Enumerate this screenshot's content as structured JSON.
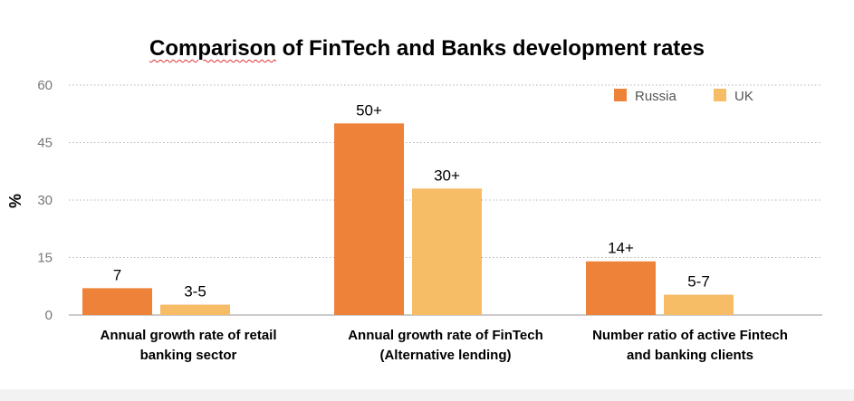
{
  "chart_data": {
    "type": "bar",
    "title_first": "Comparison",
    "title_rest": "of FinTech and Banks development rates",
    "ylabel": "%",
    "ylim": [
      0,
      60
    ],
    "yticks": [
      0,
      15,
      30,
      45,
      60
    ],
    "grid": true,
    "legend_position": "top-right",
    "categories": [
      [
        "Annual growth rate of retail",
        "banking sector"
      ],
      [
        "Annual growth rate of FinTech",
        "(Alternative lending)"
      ],
      [
        "Number ratio of active Fintech",
        "and banking clients"
      ]
    ],
    "series": [
      {
        "name": "Russia",
        "color": "#ef8239",
        "values": [
          7,
          50,
          14
        ],
        "labels": [
          "7",
          "50+",
          "14+"
        ]
      },
      {
        "name": "UK",
        "color": "#f6bc66",
        "values": [
          2.7,
          33,
          5.3
        ],
        "labels": [
          "3-5",
          "30+",
          "5-7"
        ]
      }
    ]
  }
}
